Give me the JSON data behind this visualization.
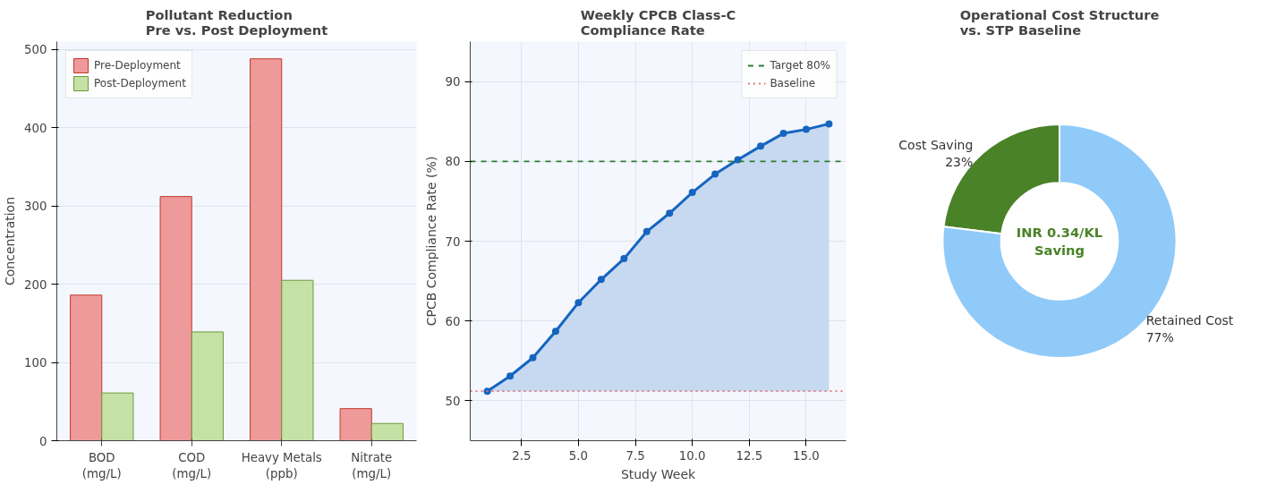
{
  "chart_data": [
    {
      "type": "bar",
      "title": "Pollutant Reduction\nPre vs. Post Deployment",
      "ylabel": "Concentration",
      "categories": [
        "BOD\n(mg/L)",
        "COD\n(mg/L)",
        "Heavy Metals\n(ppb)",
        "Nitrate\n(mg/L)"
      ],
      "series": [
        {
          "name": "Pre-Deployment",
          "color": "#ef9a9a",
          "values": [
            186,
            312,
            488,
            41
          ]
        },
        {
          "name": "Post-Deployment",
          "color": "#c5e1a5",
          "values": [
            61,
            139,
            205,
            22
          ]
        }
      ],
      "ylim": [
        0,
        510
      ],
      "yticks": [
        0,
        100,
        200,
        300,
        400,
        500
      ],
      "grid": "y",
      "legend": "top left"
    },
    {
      "type": "line",
      "title": "Weekly CPCB Class-C\nCompliance Rate",
      "xlabel": "Study Week",
      "ylabel": "CPCB Compliance Rate (%)",
      "series": [
        {
          "color": "#1565c0",
          "x": [
            1,
            2,
            3,
            4,
            5,
            6,
            7,
            8,
            9,
            10,
            11,
            12,
            13,
            14,
            15,
            16
          ],
          "values": [
            51.2,
            53.1,
            55.4,
            58.7,
            62.3,
            65.2,
            67.8,
            71.2,
            73.5,
            76.1,
            78.4,
            80.2,
            81.9,
            83.5,
            84.0,
            84.7
          ],
          "lower": [
            51.2,
            51.2,
            51.2,
            51.2,
            51.2,
            51.2,
            51.2,
            51.2,
            51.2,
            51.2,
            51.2,
            51.2,
            51.2,
            51.2,
            51.2,
            51.2
          ],
          "upper": [
            51.2,
            53.1,
            55.4,
            58.7,
            62.3,
            65.2,
            67.8,
            71.2,
            73.5,
            76.1,
            78.4,
            80.2,
            81.9,
            83.5,
            84.0,
            84.7
          ]
        }
      ],
      "ref_lines": [
        {
          "axis": "y",
          "value": 80,
          "label": "Target 80%",
          "color": "#2e7d32",
          "line_style": "dashed"
        },
        {
          "axis": "y",
          "value": 51.2,
          "label": "Baseline",
          "color": "#e57373",
          "line_style": "dotted"
        }
      ],
      "xlim": [
        0.25,
        16.75
      ],
      "xticks": [
        {
          "value": 2.5,
          "label": "2.5"
        },
        {
          "value": 5,
          "label": "5.0"
        },
        {
          "value": 7.5,
          "label": "7.5"
        },
        {
          "value": 10,
          "label": "10.0"
        },
        {
          "value": 12.5,
          "label": "12.5"
        },
        {
          "value": 15,
          "label": "15.0"
        }
      ],
      "ylim": [
        45,
        95
      ],
      "yticks": [
        50,
        60,
        70,
        80,
        90
      ],
      "grid": true,
      "legend": "top right",
      "marker": "circle"
    },
    {
      "type": "donut",
      "title": "Operational Cost Structure\nvs. STP Baseline",
      "categories": [
        "Cost Saving",
        "Retained Cost"
      ],
      "values": [
        23,
        77
      ],
      "colors": [
        "#4a8228",
        "#90caf9"
      ],
      "value_labels": [
        "23%",
        "77%"
      ],
      "annotations": [
        "INR 0.34/KL\nSaving"
      ]
    }
  ]
}
